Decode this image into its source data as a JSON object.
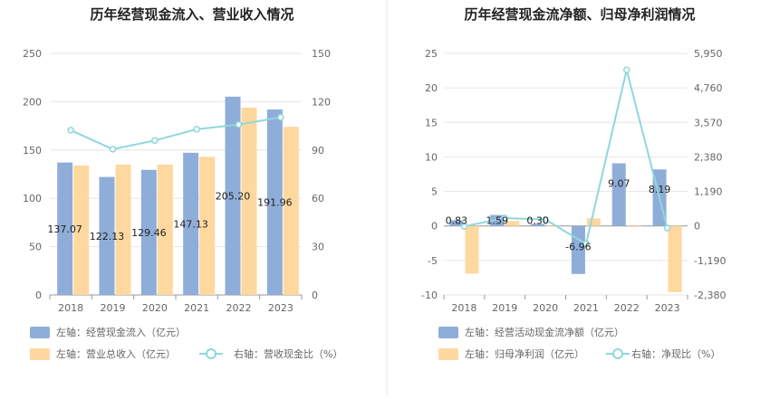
{
  "colors": {
    "bar_primary": "#8fadd9",
    "bar_secondary": "#fed89f",
    "line": "#8fd7dc",
    "grid": "#e6e6e6",
    "divider": "#e8e8e8"
  },
  "chart_data": [
    {
      "type": "bar",
      "title": "历年经营现金流入、营业收入情况",
      "categories": [
        "2018",
        "2019",
        "2020",
        "2021",
        "2022",
        "2023"
      ],
      "left_axis": {
        "min": 0,
        "max": 250,
        "ticks": [
          "0",
          "50",
          "100",
          "150",
          "200",
          "250"
        ]
      },
      "right_axis": {
        "min": 0,
        "max": 150,
        "ticks": [
          "0",
          "30",
          "60",
          "90",
          "120",
          "150"
        ]
      },
      "series": [
        {
          "name": "左轴：经营现金流入（亿元）",
          "axis": "left",
          "type": "bar",
          "values": [
            137.07,
            122.13,
            129.46,
            147.13,
            205.2,
            191.96
          ],
          "labels": [
            "137.07",
            "122.13",
            "129.46",
            "147.13",
            "205.20",
            "191.96"
          ]
        },
        {
          "name": "左轴：营业总收入（亿元）",
          "axis": "left",
          "type": "bar",
          "values": [
            134,
            135,
            135,
            143,
            194,
            174
          ]
        },
        {
          "name": "右轴：营收现金比（%）",
          "axis": "right",
          "type": "line",
          "values": [
            102.3,
            90.5,
            95.9,
            102.9,
            105.8,
            110.3
          ]
        }
      ],
      "legend": "bottom"
    },
    {
      "type": "bar",
      "title": "历年经营现金流净额、归母净利润情况",
      "categories": [
        "2018",
        "2019",
        "2020",
        "2021",
        "2022",
        "2023"
      ],
      "left_axis": {
        "min": -10,
        "max": 25,
        "ticks": [
          "-10",
          "-5",
          "0",
          "5",
          "10",
          "15",
          "20",
          "25"
        ]
      },
      "right_axis": {
        "min": -2380,
        "max": 5950,
        "ticks": [
          "-2,380",
          "-1,190",
          "0",
          "1,190",
          "2,380",
          "3,570",
          "4,760",
          "5,950"
        ]
      },
      "series": [
        {
          "name": "左轴：经营活动现金流净额（亿元）",
          "axis": "left",
          "type": "bar",
          "values": [
            0.83,
            1.59,
            0.3,
            -6.96,
            9.07,
            8.19
          ],
          "labels": [
            "0.83",
            "1.59",
            "0.30",
            "-6.96",
            "9.07",
            "8.19"
          ]
        },
        {
          "name": "左轴：归母净利润（亿元）",
          "axis": "left",
          "type": "bar",
          "values": [
            -6.9,
            0.7,
            -0.1,
            1.1,
            0.1,
            -9.6
          ]
        },
        {
          "name": "右轴：净现比（%）",
          "axis": "right",
          "type": "line",
          "values": [
            -15,
            270,
            220,
            -620,
            5380,
            -70
          ]
        }
      ],
      "legend": "bottom"
    }
  ]
}
